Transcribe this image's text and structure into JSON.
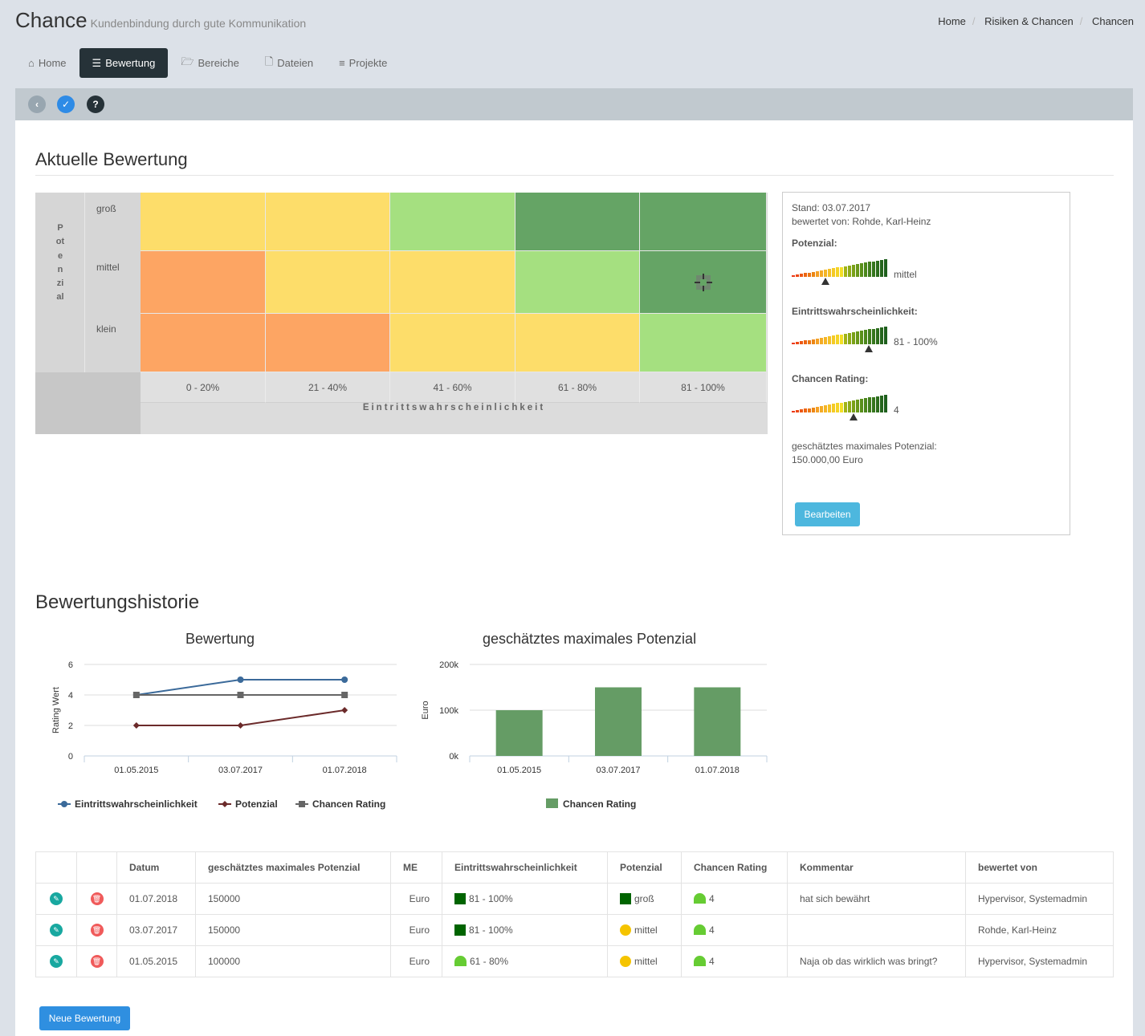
{
  "app": {
    "title": "Chance",
    "subtitle": "Kundenbindung durch gute Kommunikation"
  },
  "breadcrumb": [
    "Home",
    "Risiken & Chancen",
    "Chancen"
  ],
  "tabs": [
    {
      "label": "Home",
      "icon": "home-icon",
      "active": false
    },
    {
      "label": "Bewertung",
      "icon": "sliders-icon",
      "active": true
    },
    {
      "label": "Bereiche",
      "icon": "folder-icon",
      "active": false
    },
    {
      "label": "Dateien",
      "icon": "file-icon",
      "active": false
    },
    {
      "label": "Projekte",
      "icon": "list-icon",
      "active": false
    }
  ],
  "toolbar": {
    "back_icon": "chevron-left-icon",
    "save_icon": "check-icon",
    "help_icon": "question-icon"
  },
  "current": {
    "heading": "Aktuelle Bewertung",
    "matrix": {
      "y_axis_label": "Potenzial",
      "y_levels": [
        "groß",
        "mittel",
        "klein"
      ],
      "x_levels": [
        "0 - 20%",
        "21 - 40%",
        "41 - 60%",
        "61 - 80%",
        "81 - 100%"
      ],
      "x_axis_label": "Eintrittswahrscheinlichkeit",
      "colors": [
        [
          "#fddd6a",
          "#fddd6a",
          "#a5e080",
          "#65a465",
          "#65a465"
        ],
        [
          "#fda563",
          "#fddd6a",
          "#fddd6a",
          "#a5e080",
          "#65a465"
        ],
        [
          "#fda563",
          "#fda563",
          "#fddd6a",
          "#fddd6a",
          "#a5e080"
        ]
      ],
      "marker": {
        "row": 1,
        "col": 4,
        "icon": "crosshair-icon"
      }
    },
    "info": {
      "stand": "Stand: 03.07.2017",
      "bewertet": "bewertet von: Rohde, Karl-Heinz",
      "potenzial_label": "Potenzial:",
      "potenzial_value": "mittel",
      "potenzial_level": 0.35,
      "eintritt_label": "Eintrittswahrscheinlichkeit:",
      "eintritt_value": "81 - 100%",
      "eintritt_level": 0.82,
      "rating_label": "Chancen Rating:",
      "rating_value": "4",
      "rating_level": 0.65,
      "max_label": "geschätztes maximales Potenzial:",
      "max_value": "150.000,00  Euro",
      "edit_button": "Bearbeiten"
    }
  },
  "history": {
    "heading": "Bewertungshistorie",
    "chart_data": [
      {
        "type": "line",
        "title": "Bewertung",
        "ylabel": "Rating Wert",
        "xlabel": "",
        "ylim": [
          0,
          6
        ],
        "yticks": [
          0,
          2,
          4,
          6
        ],
        "categories": [
          "01.05.2015",
          "03.07.2017",
          "01.07.2018"
        ],
        "series": [
          {
            "name": "Eintrittswahrscheinlichkeit",
            "values": [
              4,
              5,
              5
            ],
            "color": "#3b6a9a",
            "marker": "circle"
          },
          {
            "name": "Potenzial",
            "values": [
              2,
              2,
              3
            ],
            "color": "#6b2a2a",
            "marker": "diamond"
          },
          {
            "name": "Chancen Rating",
            "values": [
              4,
              4,
              4
            ],
            "color": "#666666",
            "marker": "square"
          }
        ],
        "legend": "bottom"
      },
      {
        "type": "bar",
        "title": "geschätztes maximales Potenzial",
        "ylabel": "Euro",
        "xlabel": "",
        "ylim": [
          0,
          200000
        ],
        "yticks": [
          "0k",
          "100k",
          "200k"
        ],
        "categories": [
          "01.05.2015",
          "03.07.2017",
          "01.07.2018"
        ],
        "series": [
          {
            "name": "Chancen Rating",
            "values": [
              100000,
              150000,
              150000
            ],
            "color": "#659c65"
          }
        ],
        "legend": "bottom"
      }
    ]
  },
  "table": {
    "headers": [
      "",
      "",
      "Datum",
      "geschätztes maximales Potenzial",
      "ME",
      "Eintrittswahrscheinlichkeit",
      "Potenzial",
      "Chancen Rating",
      "Kommentar",
      "bewertet von"
    ],
    "rows": [
      {
        "datum": "01.07.2018",
        "potenzial_max": "150000",
        "me": "Euro",
        "eintritt": "81 - 100%",
        "eintritt_icon": "square",
        "eintritt_color": "#006400",
        "potenzial": "groß",
        "potenzial_icon": "square",
        "potenzial_color": "#006400",
        "rating": "4",
        "rating_color": "#66cc33",
        "kommentar": "hat sich bewährt",
        "bewertet": "Hypervisor, Systemadmin"
      },
      {
        "datum": "03.07.2017",
        "potenzial_max": "150000",
        "me": "Euro",
        "eintritt": "81 - 100%",
        "eintritt_icon": "square",
        "eintritt_color": "#006400",
        "potenzial": "mittel",
        "potenzial_icon": "circle",
        "potenzial_color": "#f5c400",
        "rating": "4",
        "rating_color": "#66cc33",
        "kommentar": "",
        "bewertet": "Rohde, Karl-Heinz"
      },
      {
        "datum": "01.05.2015",
        "potenzial_max": "100000",
        "me": "Euro",
        "eintritt": "61 - 80%",
        "eintritt_icon": "half",
        "eintritt_color": "#66cc33",
        "potenzial": "mittel",
        "potenzial_icon": "circle",
        "potenzial_color": "#f5c400",
        "rating": "4",
        "rating_color": "#66cc33",
        "kommentar": "Naja ob das wirklich was bringt?",
        "bewertet": "Hypervisor, Systemadmin"
      }
    ],
    "edit_icon": "pencil-icon",
    "delete_icon": "trash-icon"
  },
  "new_button": "Neue Bewertung"
}
